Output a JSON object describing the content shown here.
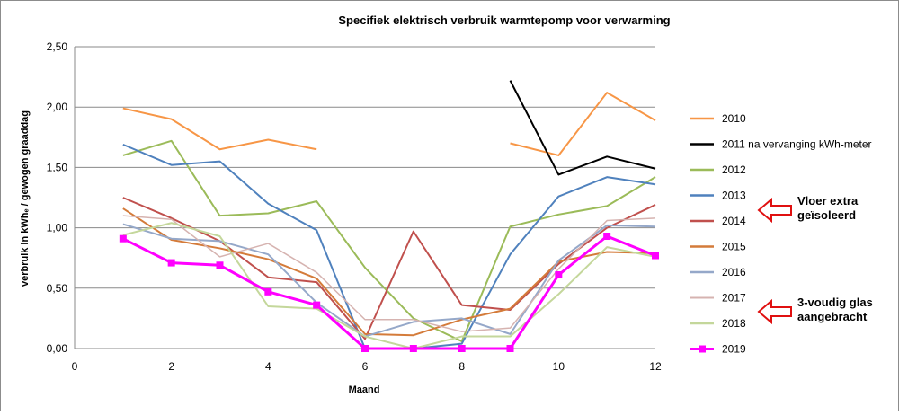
{
  "chart_data": {
    "type": "line",
    "title": "Specifiek elektrisch verbruik warmtepomp voor verwarming",
    "xlabel": "Maand",
    "ylabel": "verbruik in kWhₑ / gewogen graaddag",
    "xlim": [
      0,
      12
    ],
    "ylim": [
      0,
      2.5
    ],
    "x_ticks": [
      "0",
      "2",
      "4",
      "6",
      "8",
      "10",
      "12"
    ],
    "y_ticks": [
      "0,00",
      "0,50",
      "1,00",
      "1,50",
      "2,00",
      "2,50"
    ],
    "grid": "horizontal",
    "legend_position": "right",
    "series": [
      {
        "name": "2010",
        "color": "#f79646",
        "width": 2,
        "values": [
          1.99,
          1.9,
          1.65,
          1.73,
          1.65,
          null,
          null,
          null,
          1.7,
          1.6,
          2.12,
          1.89
        ]
      },
      {
        "name": "2011 na vervanging kWh-meter",
        "color": "#000000",
        "width": 2,
        "values": [
          null,
          null,
          null,
          null,
          null,
          null,
          null,
          null,
          2.22,
          1.44,
          1.59,
          1.49
        ]
      },
      {
        "name": "2012",
        "color": "#9bbb59",
        "width": 2,
        "values": [
          1.6,
          1.72,
          1.1,
          1.12,
          1.22,
          0.67,
          0.25,
          0.06,
          1.01,
          1.11,
          1.18,
          1.42
        ]
      },
      {
        "name": "2013",
        "color": "#4f81bd",
        "width": 2,
        "values": [
          1.69,
          1.52,
          1.55,
          1.2,
          0.98,
          0.0,
          0.0,
          0.04,
          0.78,
          1.26,
          1.42,
          1.36
        ]
      },
      {
        "name": "2014",
        "color": "#c0504d",
        "width": 2,
        "values": [
          1.25,
          1.08,
          0.89,
          0.59,
          0.55,
          0.08,
          0.97,
          0.36,
          0.32,
          0.7,
          1.0,
          1.19
        ]
      },
      {
        "name": "2015",
        "color": "#d47b3a",
        "width": 2,
        "values": [
          1.16,
          0.9,
          0.83,
          0.74,
          0.58,
          0.12,
          0.11,
          0.24,
          0.33,
          0.72,
          0.8,
          0.79
        ]
      },
      {
        "name": "2016",
        "color": "#95a8c9",
        "width": 2,
        "values": [
          1.03,
          0.91,
          0.89,
          0.78,
          0.38,
          0.1,
          0.22,
          0.25,
          0.12,
          0.73,
          1.02,
          1.01
        ]
      },
      {
        "name": "2017",
        "color": "#d6b3b0",
        "width": 1.5,
        "values": [
          1.1,
          1.07,
          0.76,
          0.87,
          0.63,
          0.24,
          0.24,
          0.14,
          0.17,
          0.66,
          1.06,
          1.08
        ]
      },
      {
        "name": "2018",
        "color": "#c4d79b",
        "width": 2,
        "values": [
          0.94,
          1.04,
          0.93,
          0.35,
          0.33,
          0.1,
          0.0,
          0.1,
          0.1,
          0.45,
          0.84,
          0.76
        ]
      },
      {
        "name": "2019",
        "color": "#ff00ff",
        "width": 3,
        "marker": "square",
        "values": [
          0.91,
          0.71,
          0.69,
          0.47,
          0.36,
          0.0,
          0.0,
          0.0,
          0.0,
          0.61,
          0.93,
          0.77
        ]
      }
    ],
    "annotations": [
      {
        "text": [
          "Vloer extra",
          "geïsoleerd"
        ],
        "points_to": "2013"
      },
      {
        "text": [
          "3-voudig glas",
          "aangebracht"
        ],
        "points_to": "2017"
      }
    ]
  }
}
